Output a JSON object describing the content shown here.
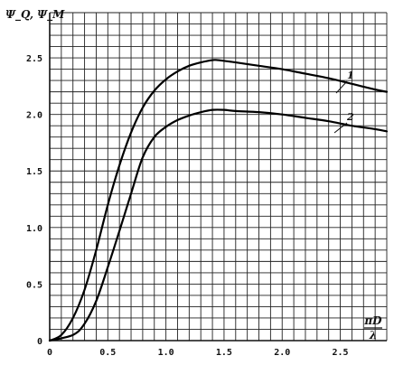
{
  "chart_data": {
    "type": "line",
    "title": "",
    "ylabel": "Ψ_Q, Ψ_M",
    "xlabel_num": "πD",
    "xlabel_den": "λ",
    "xlim": [
      0,
      2.9
    ],
    "ylim": [
      0,
      2.9
    ],
    "x_ticks": [
      0,
      0.5,
      1.0,
      1.5,
      2.0,
      2.5
    ],
    "x_tick_labels": [
      "0",
      "0.5",
      "1.0",
      "1.5",
      "2.0",
      "2.5"
    ],
    "y_ticks": [
      0,
      0.5,
      1.0,
      1.5,
      2.0,
      2.5
    ],
    "y_tick_labels": [
      "0",
      "0.5",
      "1.0",
      "1.5",
      "2.0",
      "2.5"
    ],
    "grid": true,
    "grid_step": 0.1,
    "series": [
      {
        "name": "1",
        "x": [
          0.0,
          0.1,
          0.2,
          0.3,
          0.4,
          0.5,
          0.6,
          0.7,
          0.8,
          0.9,
          1.0,
          1.1,
          1.2,
          1.3,
          1.4,
          1.45,
          1.6,
          1.8,
          2.0,
          2.2,
          2.4,
          2.6,
          2.8,
          2.9
        ],
        "y": [
          0.0,
          0.05,
          0.2,
          0.45,
          0.8,
          1.2,
          1.55,
          1.84,
          2.06,
          2.21,
          2.31,
          2.38,
          2.43,
          2.46,
          2.48,
          2.48,
          2.46,
          2.43,
          2.4,
          2.36,
          2.32,
          2.27,
          2.22,
          2.2
        ]
      },
      {
        "name": "2",
        "x": [
          0.0,
          0.2,
          0.3,
          0.4,
          0.5,
          0.6,
          0.7,
          0.8,
          0.9,
          1.0,
          1.1,
          1.2,
          1.3,
          1.4,
          1.5,
          1.6,
          1.8,
          2.0,
          2.2,
          2.4,
          2.6,
          2.8,
          2.9
        ],
        "y": [
          0.0,
          0.05,
          0.15,
          0.35,
          0.65,
          0.97,
          1.3,
          1.62,
          1.8,
          1.89,
          1.95,
          1.99,
          2.02,
          2.04,
          2.04,
          2.03,
          2.02,
          2.0,
          1.97,
          1.94,
          1.9,
          1.87,
          1.85
        ]
      }
    ]
  }
}
